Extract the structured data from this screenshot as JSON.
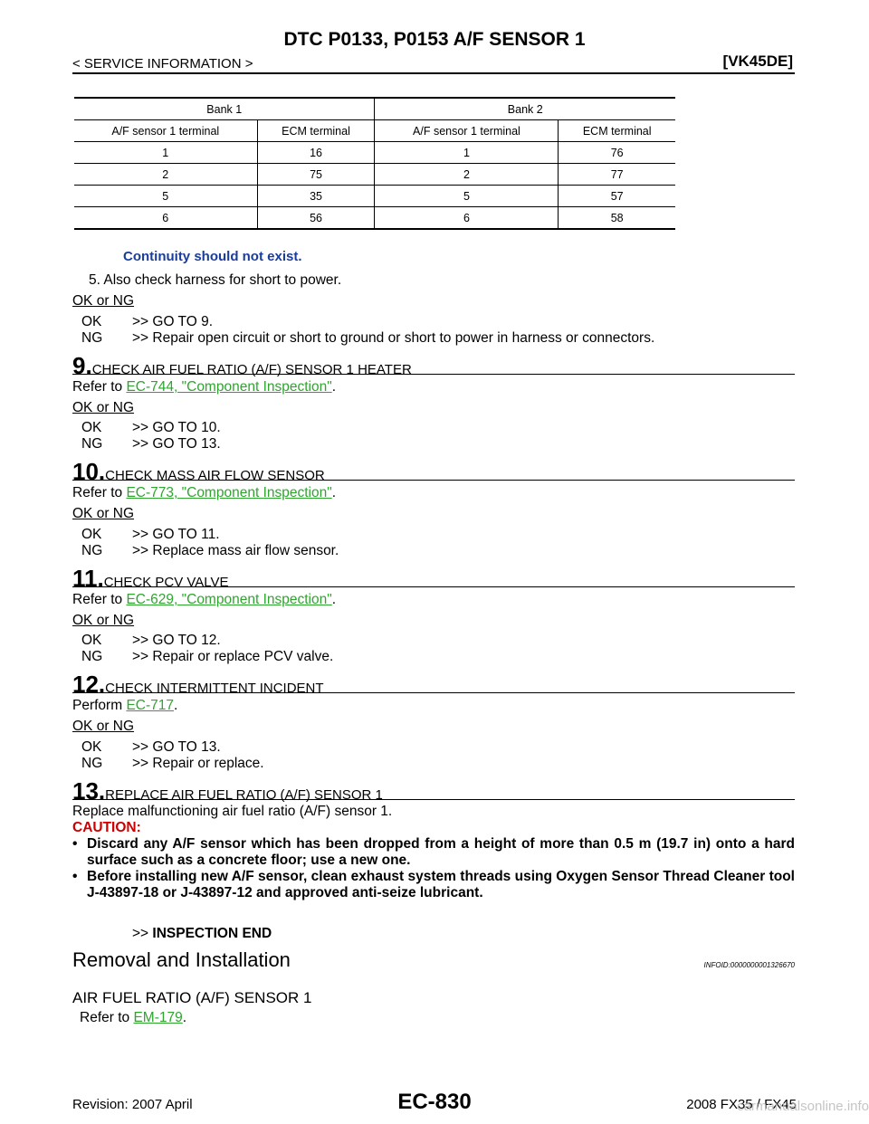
{
  "header": {
    "title": "DTC P0133, P0153 A/F SENSOR 1",
    "section": "< SERVICE INFORMATION >",
    "model": "[VK45DE]"
  },
  "terminal_table": {
    "bank1": "Bank 1",
    "bank2": "Bank 2",
    "col_af": "A/F sensor 1 terminal",
    "col_ecm": "ECM terminal",
    "rows": [
      [
        "1",
        "16",
        "1",
        "76"
      ],
      [
        "2",
        "75",
        "2",
        "77"
      ],
      [
        "5",
        "35",
        "5",
        "57"
      ],
      [
        "6",
        "56",
        "6",
        "58"
      ]
    ]
  },
  "continuity_note": "Continuity should not exist.",
  "step5": "5.  Also check harness for short to power.",
  "ok_or_ng": "OK or NG",
  "ok": "OK",
  "ng": "NG",
  "step8_results": {
    "ok": ">> GO TO 9.",
    "ng": ">> Repair open circuit or short to ground or short to power in harness or connectors."
  },
  "steps": [
    {
      "num": "9.",
      "title": "CHECK AIR FUEL RATIO (A/F) SENSOR 1 HEATER",
      "prefix": "Refer to ",
      "link": "EC-744, \"Component Inspection\"",
      "suffix": ".",
      "ok": ">> GO TO 10.",
      "ng": ">> GO TO 13."
    },
    {
      "num": "10.",
      "title": "CHECK MASS AIR FLOW SENSOR",
      "prefix": "Refer to ",
      "link": "EC-773, \"Component Inspection\"",
      "suffix": ".",
      "ok": ">> GO TO 11.",
      "ng": ">> Replace mass air flow sensor."
    },
    {
      "num": "11.",
      "title": "CHECK PCV VALVE",
      "prefix": "Refer to ",
      "link": "EC-629, \"Component Inspection\"",
      "suffix": ".",
      "ok": ">> GO TO 12.",
      "ng": ">> Repair or replace PCV valve."
    },
    {
      "num": "12.",
      "title": "CHECK INTERMITTENT INCIDENT",
      "prefix": "Perform ",
      "link": "EC-717",
      "suffix": ".",
      "ok": ">> GO TO 13.",
      "ng": ">> Repair or replace."
    },
    {
      "num": "13.",
      "title": "REPLACE AIR FUEL RATIO (A/F) SENSOR 1",
      "text": "Replace malfunctioning air fuel ratio (A/F) sensor 1."
    }
  ],
  "caution": {
    "label": "CAUTION:",
    "bullet": "•",
    "items": [
      "Discard any A/F sensor which has been dropped from a height of more than 0.5 m (19.7 in) onto a hard surface such as a concrete floor; use a new one.",
      "Before installing new A/F sensor, clean exhaust system threads using Oxygen Sensor Thread Cleaner tool J-43897-18 or J-43897-12 and approved anti-seize lubricant."
    ]
  },
  "inspection_end": {
    "arrow": ">>",
    "text": "INSPECTION END"
  },
  "removal": {
    "title": "Removal and Installation",
    "infoid": "INFOID:0000000001326670",
    "subtitle": "AIR FUEL RATIO (A/F) SENSOR 1",
    "prefix": "Refer to ",
    "link": "EM-179",
    "suffix": "."
  },
  "footer": {
    "revision": "Revision: 2007 April",
    "page": "EC-830",
    "model": "2008 FX35 / FX45",
    "watermark": "carmanualsonline.info"
  }
}
